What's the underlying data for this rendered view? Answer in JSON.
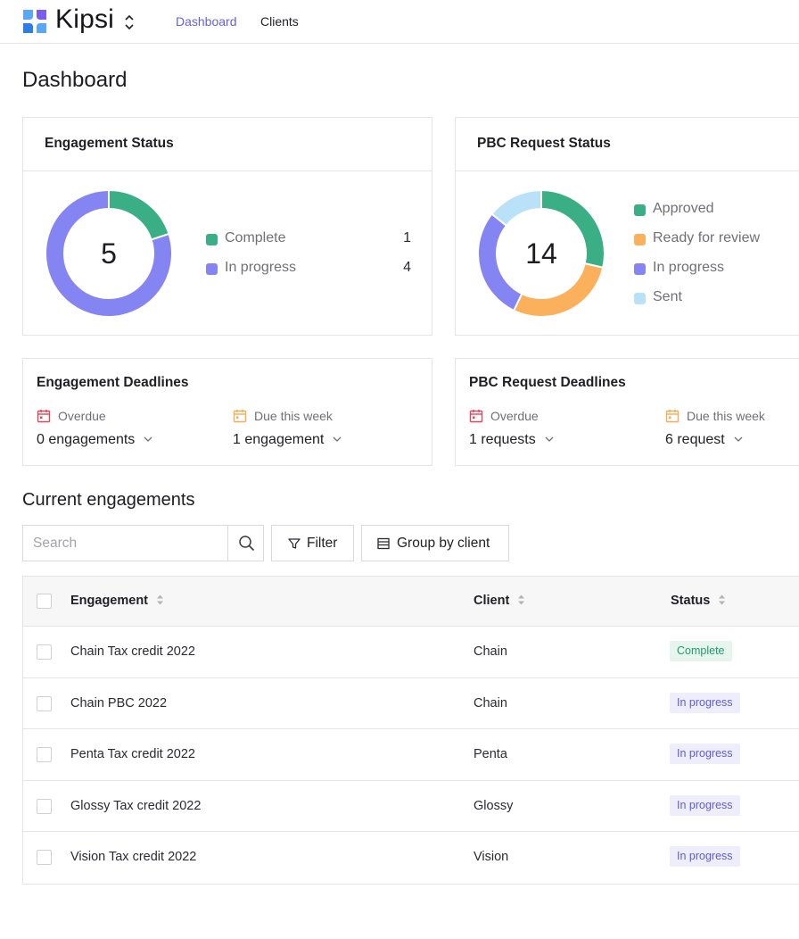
{
  "app": {
    "brand": "Kipsi"
  },
  "nav": {
    "items": [
      {
        "label": "Dashboard",
        "active": true
      },
      {
        "label": "Clients",
        "active": false
      }
    ]
  },
  "page": {
    "title": "Dashboard"
  },
  "colors": {
    "accent": "#6461e0",
    "complete": "#3aaf85",
    "in_progress": "#8584f3",
    "ready_for_review": "#fbb15c",
    "sent": "#b9e2f8"
  },
  "engagement_status": {
    "title": "Engagement Status",
    "total": "5",
    "legend": [
      {
        "label": "Complete",
        "count": "1",
        "value": 1,
        "color": "#3aaf85"
      },
      {
        "label": "In progress",
        "count": "4",
        "value": 4,
        "color": "#8584f3"
      }
    ]
  },
  "pbc_status": {
    "title": "PBC Request Status",
    "total": "14",
    "legend": [
      {
        "label": "Approved",
        "value": 4,
        "color": "#3aaf85"
      },
      {
        "label": "Ready for review",
        "value": 4,
        "color": "#fbb15c"
      },
      {
        "label": "In progress",
        "value": 4,
        "color": "#8584f3"
      },
      {
        "label": "Sent",
        "value": 2,
        "color": "#b9e2f8"
      }
    ]
  },
  "engagement_deadlines": {
    "title": "Engagement Deadlines",
    "overdue_label": "Overdue",
    "overdue_value": "0 engagements",
    "due_label": "Due this week",
    "due_value": "1 engagement"
  },
  "pbc_deadlines": {
    "title": "PBC Request Deadlines",
    "overdue_label": "Overdue",
    "overdue_value": "1 requests",
    "due_label": "Due this week",
    "due_value": "6 request"
  },
  "current": {
    "title": "Current engagements",
    "search_placeholder": "Search",
    "filter_label": "Filter",
    "group_label": "Group by client",
    "columns": {
      "engagement": "Engagement",
      "client": "Client",
      "status": "Status"
    },
    "rows": [
      {
        "engagement": "Chain Tax credit 2022",
        "client": "Chain",
        "status": "Complete"
      },
      {
        "engagement": "Chain PBC 2022",
        "client": "Chain",
        "status": "In progress"
      },
      {
        "engagement": "Penta Tax credit 2022",
        "client": "Penta",
        "status": "In progress"
      },
      {
        "engagement": "Glossy Tax credit 2022",
        "client": "Glossy",
        "status": "In progress"
      },
      {
        "engagement": "Vision Tax credit 2022",
        "client": "Vision",
        "status": "In progress"
      }
    ]
  }
}
